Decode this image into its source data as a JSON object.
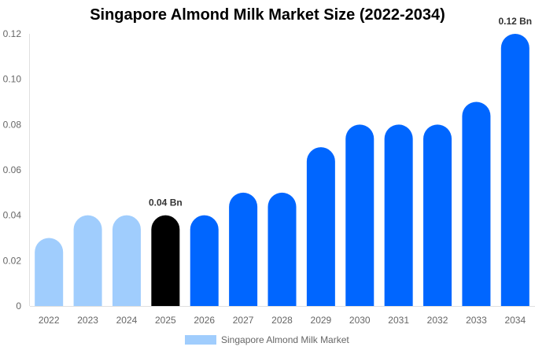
{
  "chart_data": {
    "type": "bar",
    "title": "Singapore Almond Milk Market Size (2022-2034)",
    "categories": [
      "2022",
      "2023",
      "2024",
      "2025",
      "2026",
      "2027",
      "2028",
      "2029",
      "2030",
      "2031",
      "2032",
      "2033",
      "2034"
    ],
    "series": [
      {
        "name": "Singapore Almond Milk Market",
        "values": [
          0.03,
          0.04,
          0.04,
          0.04,
          0.04,
          0.05,
          0.05,
          0.07,
          0.08,
          0.08,
          0.08,
          0.09,
          0.12
        ]
      }
    ],
    "bar_colors": [
      "#a0cdfd",
      "#a0cdfd",
      "#a0cdfd",
      "#000000",
      "#0066ff",
      "#0066ff",
      "#0066ff",
      "#0066ff",
      "#0066ff",
      "#0066ff",
      "#0066ff",
      "#0066ff",
      "#0066ff"
    ],
    "data_labels": [
      {
        "category": "2025",
        "text": "0.04 Bn"
      },
      {
        "category": "2034",
        "text": "0.12 Bn"
      }
    ],
    "yticks": [
      "0",
      "0.02",
      "0.04",
      "0.06",
      "0.08",
      "0.10",
      "0.12"
    ],
    "ylim": [
      0,
      0.12
    ],
    "grid": false,
    "legend_position": "bottom",
    "legend_color": "#a0cdfd"
  }
}
